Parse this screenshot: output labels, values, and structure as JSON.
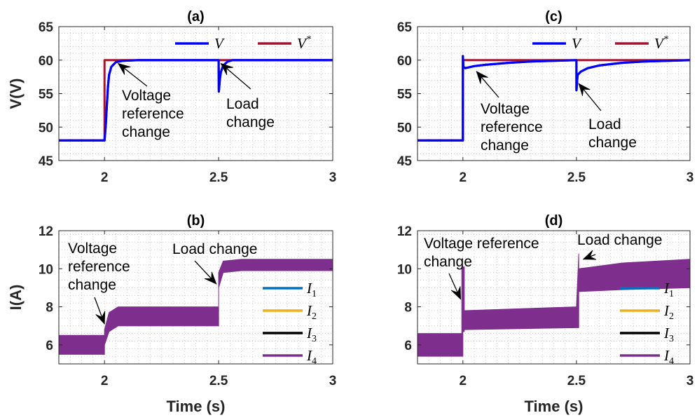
{
  "chart_data": [
    {
      "id": "a",
      "type": "line",
      "title": "(a)",
      "ylabel": "V(V)",
      "xlabel": "",
      "xlim": [
        1.8,
        3
      ],
      "ylim": [
        45,
        65
      ],
      "xticks": [
        2,
        2.5,
        3
      ],
      "yticks": [
        45,
        50,
        55,
        60,
        65
      ],
      "grid": true,
      "legend": {
        "placement": "top-right",
        "orientation": "horizontal"
      },
      "series": [
        {
          "name": "V",
          "color": "#0000ff",
          "x": [
            1.8,
            2.0,
            2.005,
            2.01,
            2.015,
            2.02,
            2.03,
            2.05,
            2.08,
            2.15,
            2.3,
            2.5,
            2.501,
            2.505,
            2.51,
            2.52,
            2.54,
            2.56,
            3.0
          ],
          "y": [
            48,
            48,
            50,
            53,
            56,
            57.8,
            59.0,
            59.7,
            59.9,
            60,
            60,
            60,
            55.3,
            57.0,
            58.2,
            59.2,
            59.8,
            60,
            60
          ]
        },
        {
          "name": "V^*",
          "color": "#a2142f",
          "x": [
            1.8,
            2.0,
            2.0,
            3.0
          ],
          "y": [
            48,
            48,
            60,
            60
          ]
        }
      ],
      "annotations": [
        {
          "lines": [
            "Voltage",
            "reference",
            "change"
          ],
          "x": 2.06,
          "y": 59.5
        },
        {
          "lines": [
            "Load",
            "change"
          ],
          "x": 2.51,
          "y": 59.5
        }
      ]
    },
    {
      "id": "b",
      "type": "line",
      "title": "(b)",
      "ylabel": "I(A)",
      "xlabel": "Time (s)",
      "xlim": [
        1.8,
        3
      ],
      "ylim": [
        5,
        12
      ],
      "xticks": [
        2,
        2.5,
        3
      ],
      "yticks": [
        6,
        8,
        10,
        12
      ],
      "grid": true,
      "legend": {
        "placement": "bottom-right",
        "orientation": "vertical"
      },
      "series": [
        {
          "name": "I_1",
          "color": "#0072bd"
        },
        {
          "name": "I_2",
          "color": "#edb120"
        },
        {
          "name": "I_3",
          "color": "#000000"
        },
        {
          "name": "I_4",
          "color": "#7e2f8e",
          "x": [
            1.8,
            2.0,
            2.0,
            2.02,
            2.06,
            2.5,
            2.5,
            2.52,
            2.6,
            3.0
          ],
          "y_low": [
            5.5,
            5.5,
            6.0,
            6.7,
            7.0,
            7.0,
            9.0,
            9.8,
            9.9,
            9.9
          ],
          "y_high": [
            6.5,
            6.5,
            6.8,
            7.7,
            8.0,
            8.0,
            9.8,
            10.4,
            10.5,
            10.5
          ]
        }
      ],
      "annotations": [
        {
          "lines": [
            "Voltage",
            "reference",
            "change"
          ],
          "x": 2.0,
          "y": 7.1
        },
        {
          "lines": [
            "Load change"
          ],
          "x": 2.49,
          "y": 9.2
        }
      ]
    },
    {
      "id": "c",
      "type": "line",
      "title": "(c)",
      "ylabel": "",
      "xlabel": "",
      "xlim": [
        1.8,
        3
      ],
      "ylim": [
        45,
        65
      ],
      "xticks": [
        2,
        2.5,
        3
      ],
      "yticks": [
        45,
        50,
        55,
        60,
        65
      ],
      "grid": true,
      "legend": {
        "placement": "top-right",
        "orientation": "horizontal"
      },
      "series": [
        {
          "name": "V",
          "color": "#0000ff",
          "x": [
            1.8,
            2.0,
            2.0,
            2.002,
            2.01,
            2.05,
            2.1,
            2.2,
            2.3,
            2.4,
            2.5,
            2.5,
            2.505,
            2.52,
            2.55,
            2.6,
            2.7,
            2.8,
            3.0
          ],
          "y": [
            48,
            48,
            60.6,
            59.0,
            58.8,
            59.1,
            59.3,
            59.6,
            59.8,
            59.9,
            60,
            55.5,
            57.8,
            58.3,
            58.8,
            59.2,
            59.6,
            59.8,
            60
          ]
        },
        {
          "name": "V^*",
          "color": "#a2142f",
          "x": [
            1.8,
            2.0,
            2.0,
            3.0
          ],
          "y": [
            48,
            48,
            60,
            60
          ]
        }
      ],
      "annotations": [
        {
          "lines": [
            "Voltage",
            "reference",
            "change"
          ],
          "x": 2.06,
          "y": 58.3
        },
        {
          "lines": [
            "Load",
            "change"
          ],
          "x": 2.51,
          "y": 56.5
        }
      ]
    },
    {
      "id": "d",
      "type": "line",
      "title": "(d)",
      "ylabel": "",
      "xlabel": "Time (s)",
      "xlim": [
        1.8,
        3
      ],
      "ylim": [
        5,
        12
      ],
      "xticks": [
        2,
        2.5,
        3
      ],
      "yticks": [
        6,
        8,
        10,
        12
      ],
      "grid": true,
      "legend": {
        "placement": "bottom-right",
        "orientation": "vertical"
      },
      "series": [
        {
          "name": "I_1",
          "color": "#0072bd"
        },
        {
          "name": "I_2",
          "color": "#edb120"
        },
        {
          "name": "I_3",
          "color": "#000000"
        },
        {
          "name": "I_4",
          "color": "#7e2f8e",
          "x": [
            1.8,
            1.995,
            1.995,
            2.0,
            2.0,
            2.006,
            2.006,
            2.5,
            2.5,
            2.51,
            2.51,
            2.7,
            3.0
          ],
          "y_low": [
            5.4,
            5.4,
            5.4,
            5.4,
            6.7,
            6.7,
            6.8,
            6.9,
            6.9,
            6.9,
            8.8,
            8.9,
            9.0
          ],
          "y_high": [
            6.6,
            6.6,
            10.1,
            10.1,
            10.1,
            10.1,
            7.8,
            8.0,
            8.0,
            10.8,
            10.0,
            10.3,
            10.5
          ]
        }
      ],
      "annotations": [
        {
          "lines": [
            "Voltage reference",
            "change"
          ],
          "x": 1.99,
          "y": 8.4
        },
        {
          "lines": [
            "Load change"
          ],
          "x": 2.53,
          "y": 10.5
        }
      ]
    }
  ]
}
